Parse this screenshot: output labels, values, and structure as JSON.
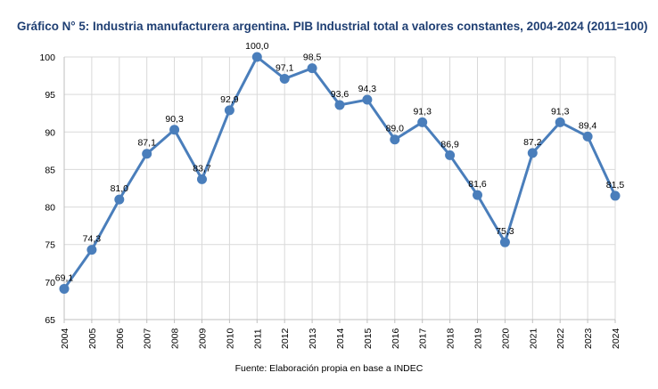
{
  "colors": {
    "title": "#1f3f73",
    "line": "#4a7ebb",
    "marker": "#4a7ebb",
    "grid": "#d9d9d9",
    "axis": "#bfbfbf"
  },
  "chart_data": {
    "type": "line",
    "title": "Gráfico N° 5: Industria manufacturera argentina. PIB Industrial total a valores constantes, 2004-2024 (2011=100)",
    "xlabel": "",
    "ylabel": "",
    "categories": [
      "2004",
      "2005",
      "2006",
      "2007",
      "2008",
      "2009",
      "2010",
      "2011",
      "2012",
      "2013",
      "2014",
      "2015",
      "2016",
      "2017",
      "2018",
      "2019",
      "2020",
      "2021",
      "2022",
      "2023",
      "2024"
    ],
    "values": [
      69.1,
      74.3,
      81.0,
      87.1,
      90.3,
      83.7,
      92.9,
      100.0,
      97.1,
      98.5,
      93.6,
      94.3,
      89.0,
      91.3,
      86.9,
      81.6,
      75.3,
      87.2,
      91.3,
      89.4,
      81.5
    ],
    "data_labels": [
      "69,1",
      "74,3",
      "81,0",
      "87,1",
      "90,3",
      "83,7",
      "92,9",
      "100,0",
      "97,1",
      "98,5",
      "93,6",
      "94,3",
      "89,0",
      "91,3",
      "86,9",
      "81,6",
      "75,3",
      "87,2",
      "91,3",
      "89,4",
      "81,5"
    ],
    "ylim": [
      65,
      100
    ],
    "yticks": [
      65,
      70,
      75,
      80,
      85,
      90,
      95,
      100
    ],
    "grid": true,
    "legend": "none",
    "source": "Fuente: Elaboración propia en base a INDEC"
  }
}
